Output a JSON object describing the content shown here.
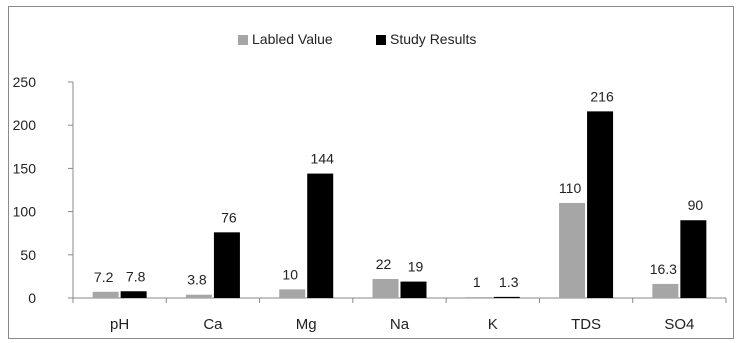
{
  "chart_data": {
    "type": "bar",
    "title": "",
    "xlabel": "",
    "ylabel": "",
    "ylim": [
      0,
      250
    ],
    "yticks": [
      "0",
      "50",
      "100",
      "150",
      "200",
      "250"
    ],
    "grid": false,
    "legend_position": "top-center",
    "categories": [
      "pH",
      "Ca",
      "Mg",
      "Na",
      "K",
      "TDS",
      "SO4"
    ],
    "series": [
      {
        "name": "Labled Value",
        "color": "#a6a6a6",
        "values": [
          7.2,
          3.8,
          10,
          22,
          1,
          110,
          16.3
        ],
        "labels": [
          "7.2",
          "3.8",
          "10",
          "22",
          "1",
          "110",
          "16.3"
        ]
      },
      {
        "name": "Study Results",
        "color": "#000000",
        "values": [
          7.8,
          76,
          144,
          19,
          1.3,
          216,
          90
        ],
        "labels": [
          "7.8",
          "76",
          "144",
          "19",
          "1.3",
          "216",
          "90"
        ]
      }
    ]
  }
}
